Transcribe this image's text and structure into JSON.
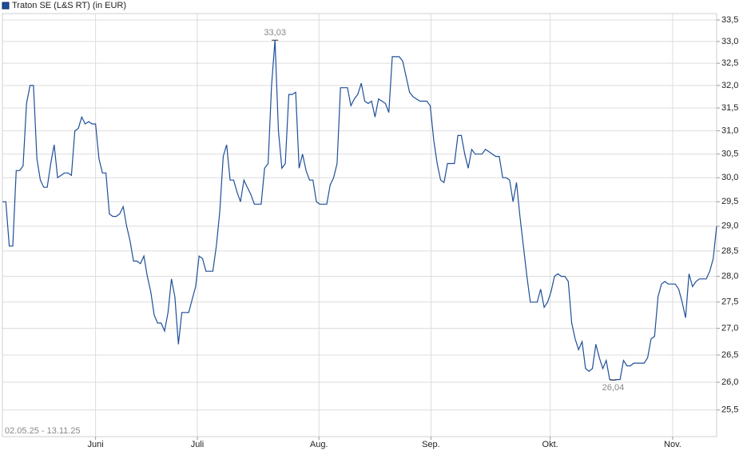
{
  "chart_data": {
    "type": "line",
    "title": "Traton SE (L&S RT) (in EUR)",
    "date_range": "02.05.25 - 13.11.25",
    "log_scale": true,
    "grid": true,
    "color": "#1f4f99",
    "series": [
      {
        "name": "Traton SE (L&S RT) (in EUR)",
        "color": "#1f4f99",
        "values": [
          29.5,
          29.5,
          28.6,
          28.6,
          30.15,
          30.15,
          30.25,
          31.6,
          32.0,
          32.0,
          30.4,
          29.95,
          29.8,
          29.8,
          30.3,
          30.7,
          30.0,
          30.05,
          30.1,
          30.1,
          30.05,
          31.0,
          31.05,
          31.3,
          31.15,
          31.2,
          31.15,
          31.15,
          30.4,
          30.1,
          30.1,
          29.25,
          29.2,
          29.2,
          29.25,
          29.4,
          29.0,
          28.7,
          28.3,
          28.3,
          28.25,
          28.4,
          28.0,
          27.7,
          27.25,
          27.1,
          27.1,
          26.95,
          27.3,
          27.95,
          27.6,
          26.7,
          27.3,
          27.3,
          27.3,
          27.55,
          27.8,
          28.4,
          28.35,
          28.1,
          28.1,
          28.1,
          28.6,
          29.3,
          30.45,
          30.7,
          29.95,
          29.95,
          29.7,
          29.5,
          29.95,
          29.8,
          29.65,
          29.45,
          29.45,
          29.45,
          30.2,
          30.3,
          32.0,
          33.03,
          31.0,
          30.2,
          30.3,
          31.8,
          31.8,
          31.85,
          30.2,
          30.5,
          30.15,
          29.95,
          29.95,
          29.5,
          29.45,
          29.45,
          29.45,
          29.85,
          30.0,
          30.3,
          31.95,
          31.95,
          31.95,
          31.55,
          31.7,
          31.8,
          32.05,
          31.65,
          31.6,
          31.65,
          31.3,
          31.7,
          31.65,
          31.6,
          31.4,
          32.65,
          32.65,
          32.65,
          32.55,
          32.2,
          31.85,
          31.75,
          31.7,
          31.65,
          31.65,
          31.65,
          31.55,
          30.8,
          30.3,
          29.95,
          29.9,
          30.3,
          30.3,
          30.3,
          30.9,
          30.9,
          30.5,
          30.2,
          30.6,
          30.5,
          30.5,
          30.5,
          30.6,
          30.55,
          30.5,
          30.45,
          30.45,
          30.0,
          30.0,
          29.95,
          29.5,
          29.9,
          29.2,
          28.6,
          28.0,
          27.5,
          27.5,
          27.5,
          27.75,
          27.4,
          27.5,
          27.7,
          28.0,
          28.05,
          28.0,
          28.0,
          27.9,
          27.1,
          26.8,
          26.6,
          26.75,
          26.25,
          26.2,
          26.25,
          26.7,
          26.45,
          26.25,
          26.4,
          26.05,
          26.04,
          26.05,
          26.05,
          26.4,
          26.3,
          26.3,
          26.35,
          26.35,
          26.35,
          26.35,
          26.45,
          26.8,
          26.85,
          27.6,
          27.85,
          27.9,
          27.85,
          27.85,
          27.85,
          27.75,
          27.5,
          27.2,
          28.05,
          27.8,
          27.9,
          27.95,
          27.95,
          27.95,
          28.1,
          28.35,
          29.0
        ]
      }
    ],
    "max_label": "33,03",
    "min_label": "26,04",
    "xlim": [
      0,
      207
    ],
    "xticks": [
      {
        "value": 27,
        "label": "Juni"
      },
      {
        "value": 56.5,
        "label": "Juli"
      },
      {
        "value": 91.75,
        "label": "Aug."
      },
      {
        "value": 124.2,
        "label": "Sep."
      },
      {
        "value": 158.75,
        "label": "Okt."
      },
      {
        "value": 194.25,
        "label": "Nov."
      }
    ],
    "ylim": [
      25.03,
      33.65
    ],
    "yticks": [
      {
        "value": 25.5,
        "label": "25,5"
      },
      {
        "value": 26,
        "label": "26,0"
      },
      {
        "value": 26.5,
        "label": "26,5"
      },
      {
        "value": 27,
        "label": "27,0"
      },
      {
        "value": 27.5,
        "label": "27,5"
      },
      {
        "value": 28,
        "label": "28,0"
      },
      {
        "value": 28.5,
        "label": "28,5"
      },
      {
        "value": 29,
        "label": "29,0"
      },
      {
        "value": 29.5,
        "label": "29,5"
      },
      {
        "value": 30,
        "label": "30,0"
      },
      {
        "value": 30.5,
        "label": "30,5"
      },
      {
        "value": 31,
        "label": "31,0"
      },
      {
        "value": 31.5,
        "label": "31,5"
      },
      {
        "value": 32,
        "label": "32,0"
      },
      {
        "value": 32.5,
        "label": "32,5"
      },
      {
        "value": 33,
        "label": "33,0"
      },
      {
        "value": 33.5,
        "label": "33,5"
      }
    ]
  }
}
